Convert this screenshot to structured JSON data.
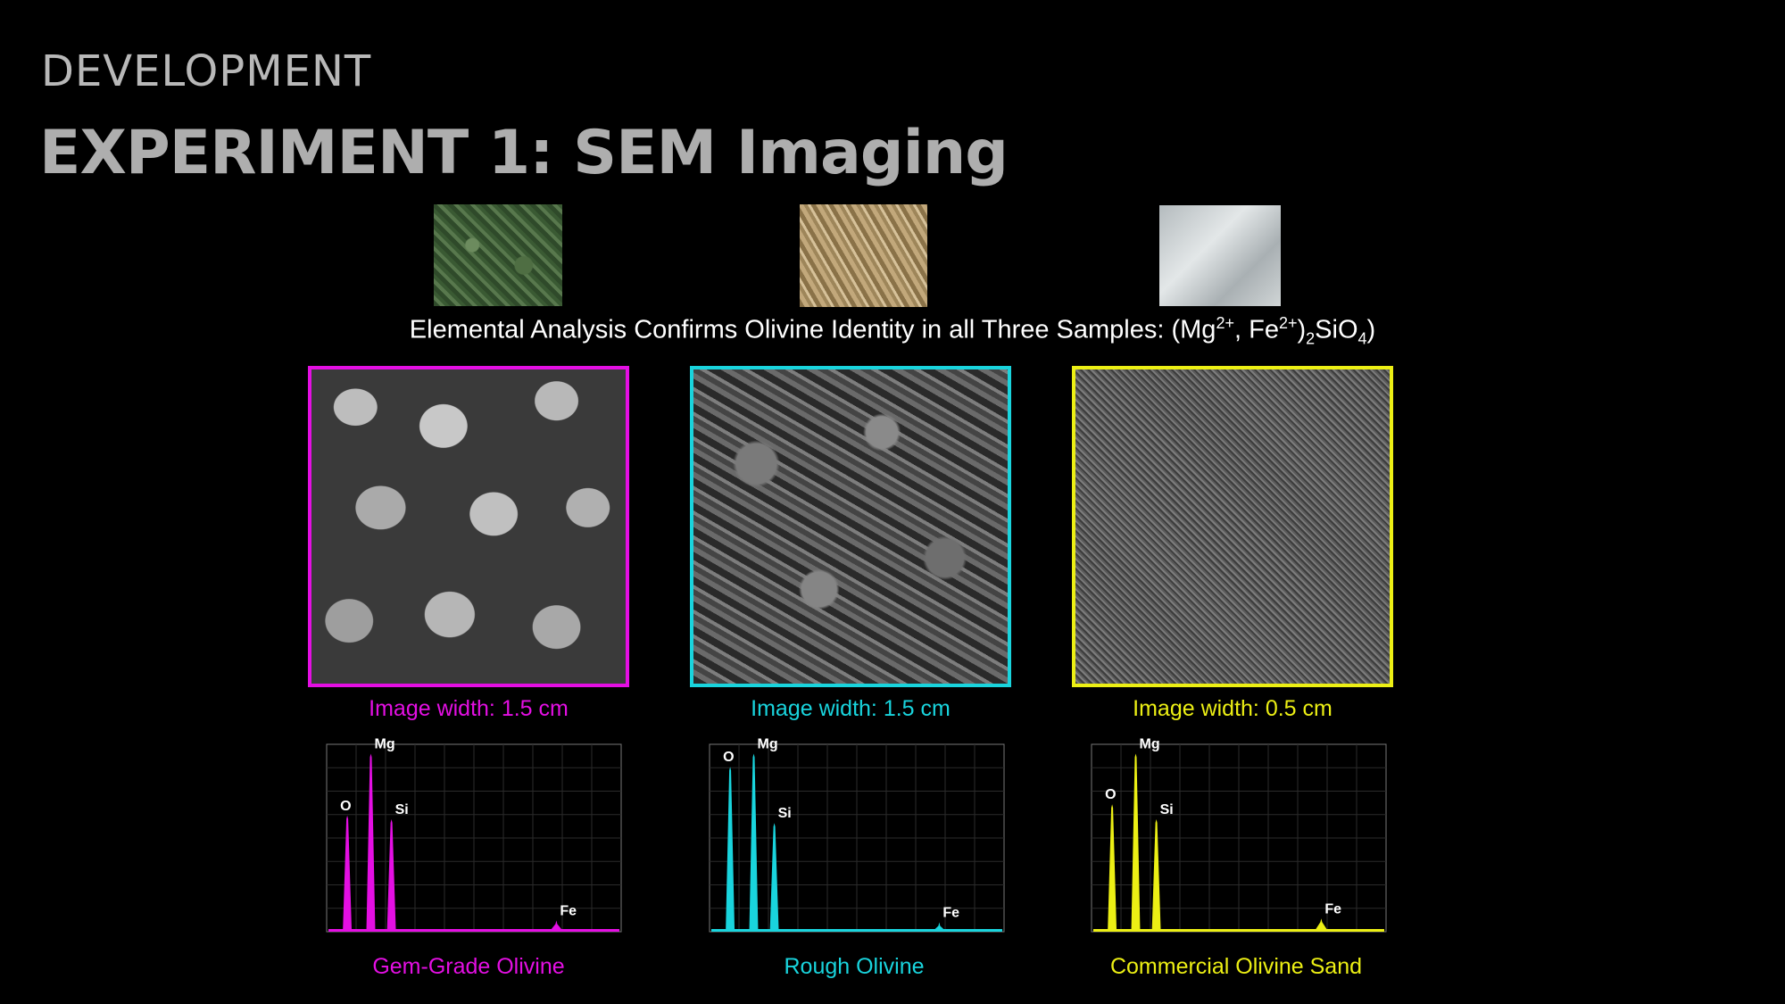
{
  "header": {
    "section_label": "DEVELOPMENT",
    "title": "EXPERIMENT 1: SEM Imaging"
  },
  "photos": [
    {
      "name": "gem-grade-photo",
      "tone": "green"
    },
    {
      "name": "rough-photo",
      "tone": "tan"
    },
    {
      "name": "commercial-photo",
      "tone": "grey"
    }
  ],
  "subtitle": {
    "prefix": "Elemental Analysis Confirms Olivine Identity in all Three Samples: (Mg",
    "sup1": "2+",
    "mid": ", Fe",
    "sup2": "2+",
    "close": ")",
    "sub1": "2",
    "si": "SiO",
    "sub2": "4",
    "end": ")"
  },
  "samples": [
    {
      "name": "Gem-Grade Olivine",
      "width_label": "Image width: 1.5 cm",
      "color": "#e40fe3"
    },
    {
      "name": "Rough Olivine",
      "width_label": "Image width: 1.5 cm",
      "color": "#19d4dd"
    },
    {
      "name": "Commercial Olivine Sand",
      "width_label": "Image width: 0.5 cm",
      "color": "#ecef14"
    }
  ],
  "spectra": [
    {
      "peaks": [
        {
          "label": "O",
          "rel": 0.62
        },
        {
          "label": "Mg",
          "rel": 0.95
        },
        {
          "label": "Si",
          "rel": 0.6
        },
        {
          "label": "Fe",
          "rel": 0.06
        }
      ]
    },
    {
      "peaks": [
        {
          "label": "O",
          "rel": 0.88
        },
        {
          "label": "Mg",
          "rel": 0.95
        },
        {
          "label": "Si",
          "rel": 0.58
        },
        {
          "label": "Fe",
          "rel": 0.05
        }
      ]
    },
    {
      "peaks": [
        {
          "label": "O",
          "rel": 0.68
        },
        {
          "label": "Mg",
          "rel": 0.95
        },
        {
          "label": "Si",
          "rel": 0.6
        },
        {
          "label": "Fe",
          "rel": 0.07
        }
      ]
    }
  ]
}
